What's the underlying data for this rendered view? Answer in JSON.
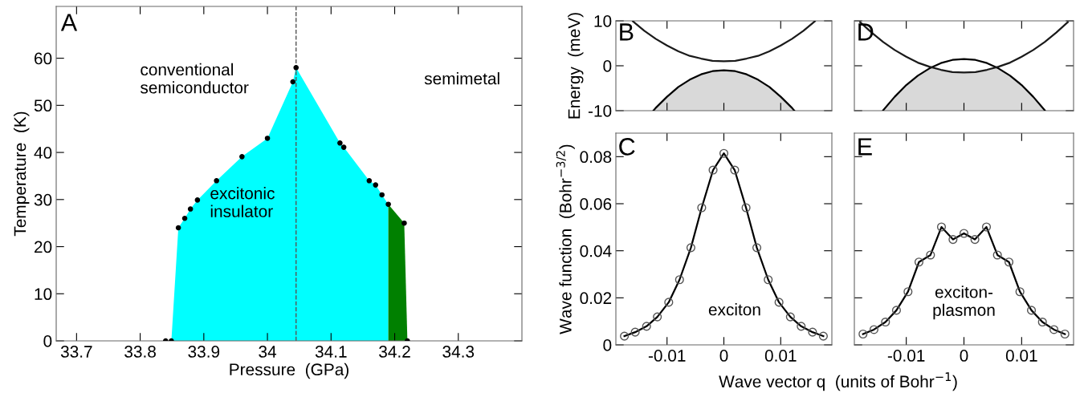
{
  "chart_data": [
    {
      "type": "area",
      "title": "A",
      "xlabel": "Pressure  (GPa)",
      "ylabel": "Temperature  (K)",
      "xlim": [
        33.668,
        34.4
      ],
      "ylim": [
        0,
        71
      ],
      "xticks": [
        33.7,
        33.8,
        33.9,
        34,
        34.1,
        34.2,
        34.3
      ],
      "yticks": [
        0,
        10,
        20,
        30,
        40,
        50,
        60
      ],
      "grid": false,
      "legend": false,
      "annotations": [
        "conventional\nsemiconductor",
        "semimetal",
        "excitonic\ninsulator"
      ],
      "ref_lines": [
        {
          "axis": "x",
          "value": 34.045,
          "label": null,
          "color": "#555555",
          "line_style": "dashed"
        }
      ],
      "series": [
        {
          "color": "#00ffff",
          "x": [
            33.849,
            33.86,
            33.87,
            33.879,
            33.89,
            33.92,
            33.96,
            34.0,
            34.04,
            34.045,
            34.114,
            34.12,
            34.16,
            34.17,
            34.18,
            34.19
          ],
          "values": [
            0,
            24,
            26,
            28,
            29.9,
            34,
            39.1,
            43,
            55,
            58,
            42,
            41.1,
            34,
            33.1,
            31,
            29
          ]
        },
        {
          "color": "#008000",
          "x": [
            34.19,
            34.215,
            34.22
          ],
          "values": [
            29,
            25,
            0
          ]
        },
        {
          "type": "scatter",
          "color": "#000000",
          "marker": "circle",
          "x": [
            33.84,
            33.849,
            33.86,
            33.87,
            33.879,
            33.89,
            33.92,
            33.96,
            34.0,
            34.04,
            34.045,
            34.114,
            34.12,
            34.16,
            34.17,
            34.18,
            34.19,
            34.215,
            34.22
          ],
          "values": [
            0,
            0,
            24,
            26,
            28,
            29.9,
            34,
            39.1,
            43,
            55,
            58,
            42,
            41.1,
            34,
            33.1,
            31,
            29,
            25,
            0
          ]
        }
      ]
    },
    {
      "type": "line",
      "title": "B",
      "ylabel": "Energy  (meV)",
      "xlim": [
        -0.019,
        0.019
      ],
      "ylim": [
        -10,
        10
      ],
      "xticks": [
        {
          "value": -0.01,
          "label": null
        },
        {
          "value": 0,
          "label": null
        },
        {
          "value": 0.01,
          "label": null
        }
      ],
      "yticks": [
        -10,
        0,
        10
      ],
      "tick_labels": "y",
      "grid": false,
      "legend": false,
      "marker": "none",
      "series": [
        {
          "color": "#1a1a1a",
          "x": [
            -0.016,
            -0.014,
            -0.012,
            -0.01,
            -0.008,
            -0.006,
            -0.004,
            -0.002,
            0,
            0.002,
            0.004,
            0.006,
            0.008,
            0.01,
            0.012,
            0.014,
            0.016
          ],
          "values": [
            9.9,
            7.8,
            6,
            4.5,
            3.2,
            2.2,
            1.6,
            1.1,
            1,
            1.1,
            1.6,
            2.2,
            3.2,
            4.5,
            6,
            7.8,
            9.9
          ]
        },
        {
          "type": "area",
          "color": "#d9d9d9",
          "line_style": "solid",
          "x": [
            -0.0124,
            -0.012,
            -0.01,
            -0.008,
            -0.006,
            -0.004,
            -0.002,
            0,
            0.002,
            0.004,
            0.006,
            0.008,
            0.01,
            0.012,
            0.0124
          ],
          "values": [
            -10,
            -9.4,
            -6.9,
            -4.7,
            -3.1,
            -1.9,
            -1.2,
            -1,
            -1.2,
            -1.9,
            -3.1,
            -4.7,
            -6.9,
            -9.4,
            -10
          ]
        }
      ]
    },
    {
      "type": "line",
      "title": "D",
      "xlim": [
        -0.019,
        0.019
      ],
      "ylim": [
        -10,
        10
      ],
      "xticks": [
        {
          "value": -0.01,
          "label": null
        },
        {
          "value": 0,
          "label": null
        },
        {
          "value": 0.01,
          "label": null
        }
      ],
      "yticks": [
        {
          "value": -10,
          "label": null
        },
        {
          "value": 0,
          "label": null
        },
        {
          "value": 10,
          "label": null
        }
      ],
      "tick_labels": false,
      "grid": false,
      "legend": false,
      "marker": "none",
      "series": [
        {
          "color": "#000000",
          "x": [
            -0.014,
            -0.012,
            -0.01,
            -0.008,
            -0.006,
            -0.004,
            -0.002,
            0,
            0.002,
            0.004,
            0.006,
            0.008,
            0.01,
            0.012,
            0.014
          ],
          "values": [
            -9.9,
            -6.9,
            -4.3,
            -2.2,
            -0.6,
            0.6,
            1.3,
            1.5,
            1.3,
            0.6,
            -0.6,
            -2.2,
            -4.3,
            -6.9,
            -9.9
          ]
        },
        {
          "color": "#1a1a1a",
          "x": [
            -0.018,
            -0.016,
            -0.014,
            -0.012,
            -0.01,
            -0.008,
            -0.006,
            -0.004,
            -0.002,
            0,
            0.002,
            0.004,
            0.006,
            0.008,
            0.01,
            0.012,
            0.014,
            0.016,
            0.018
          ],
          "values": [
            9.7,
            7.4,
            5.3,
            3.5,
            2,
            0.7,
            -0.2,
            -0.9,
            -1.4,
            -1.5,
            -1.4,
            -0.9,
            -0.2,
            0.7,
            2,
            3.5,
            5.3,
            7.4,
            9.7
          ]
        },
        {
          "type": "area",
          "color": "#d9d9d9",
          "x": [
            -0.0141,
            -0.012,
            -0.01,
            -0.008,
            -0.0057,
            -0.004,
            -0.002,
            0,
            0.002,
            0.004,
            0.0057,
            0.008,
            0.01,
            0.012,
            0.0141
          ],
          "values": [
            -10,
            -6.9,
            -4.3,
            -2.2,
            -0.4,
            -0.9,
            -1.4,
            -1.5,
            -1.4,
            -0.9,
            -0.4,
            -2.2,
            -4.3,
            -6.9,
            -10
          ]
        }
      ]
    },
    {
      "type": "line",
      "title": "C",
      "ylabel": "Wave function  (Bohr$^{−3/2}$)",
      "xlabel": "Wave vector q  (units of Bohr$^{−1}$)",
      "xlim": [
        -0.019,
        0.019
      ],
      "ylim": [
        0,
        0.09
      ],
      "xticks": [
        -0.01,
        0,
        0.01
      ],
      "yticks": [
        0,
        0.02,
        0.04,
        0.06,
        0.08
      ],
      "grid": false,
      "legend": false,
      "marker": "circle",
      "line_style": "solid",
      "annotations": [
        "exciton"
      ],
      "series": [
        {
          "color": "#000000",
          "x": [
            -0.0175,
            -0.0156,
            -0.0136,
            -0.0117,
            -0.0097,
            -0.0078,
            -0.0058,
            -0.0039,
            -0.0019,
            0,
            0.0019,
            0.0039,
            0.0058,
            0.0078,
            0.0097,
            0.0117,
            0.0136,
            0.0156,
            0.0175
          ],
          "values": [
            0.0037,
            0.0054,
            0.0079,
            0.0119,
            0.0181,
            0.0277,
            0.0413,
            0.0583,
            0.0743,
            0.0814,
            0.0743,
            0.0583,
            0.0413,
            0.0277,
            0.0181,
            0.0119,
            0.0079,
            0.0054,
            0.0037
          ]
        }
      ]
    },
    {
      "type": "line",
      "title": "E",
      "xlim": [
        -0.019,
        0.019
      ],
      "ylim": [
        0,
        0.09
      ],
      "xticks": [
        -0.01,
        0,
        0.01
      ],
      "yticks": [
        {
          "value": 0,
          "label": null
        },
        {
          "value": 0.02,
          "label": null
        },
        {
          "value": 0.04,
          "label": null
        },
        {
          "value": 0.06,
          "label": null
        },
        {
          "value": 0.08,
          "label": null
        }
      ],
      "tick_labels": "x",
      "grid": false,
      "legend": false,
      "marker": "circle",
      "line_style": "solid",
      "annotations": [
        "exciton-\nplasmon"
      ],
      "series": [
        {
          "color": "#000000",
          "x": [
            -0.0175,
            -0.0156,
            -0.0136,
            -0.0117,
            -0.0097,
            -0.0078,
            -0.0058,
            -0.0039,
            -0.0019,
            0,
            0.0019,
            0.0039,
            0.0058,
            0.0078,
            0.0097,
            0.0117,
            0.0136,
            0.0156,
            0.0175
          ],
          "values": [
            0.0046,
            0.0065,
            0.0097,
            0.0147,
            0.0226,
            0.0352,
            0.0382,
            0.0501,
            0.0448,
            0.0474,
            0.0448,
            0.0501,
            0.0382,
            0.0352,
            0.0226,
            0.0147,
            0.0097,
            0.0065,
            0.0046
          ]
        }
      ]
    }
  ]
}
